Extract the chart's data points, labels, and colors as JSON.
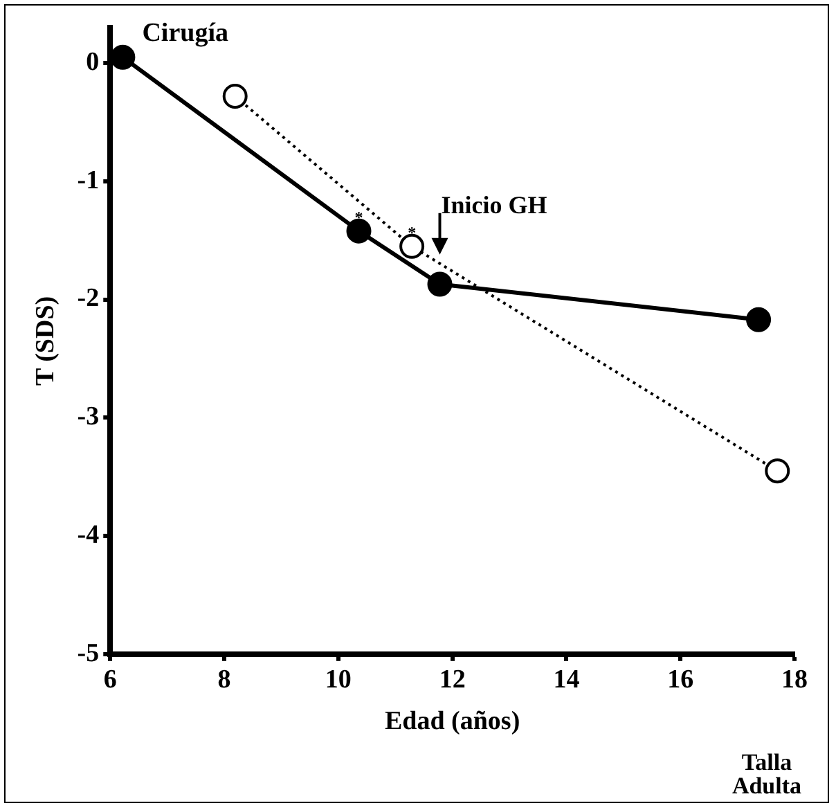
{
  "chart_data": {
    "type": "line",
    "xlabel": "Edad (años)",
    "ylabel": "T (SDS)",
    "xlim": [
      6,
      18
    ],
    "xticks": [
      6,
      8,
      10,
      12,
      14,
      16,
      18
    ],
    "ylim": [
      -5,
      0.3
    ],
    "yticks": [
      0,
      -1,
      -2,
      -3,
      -4,
      -5
    ],
    "grid": false,
    "legend": false,
    "marker": "circle",
    "series": [
      {
        "color": "#000000",
        "x": [
          6.22,
          10.36,
          11.78,
          17.37
        ],
        "values": [
          0.05,
          -1.42,
          -1.87,
          -2.17
        ],
        "line_style": "solid"
      },
      {
        "color": "#000000",
        "x": [
          8.19,
          11.29,
          17.7
        ],
        "values": [
          -0.28,
          -1.55,
          -3.45
        ],
        "line_style": "dotted"
      }
    ],
    "annotations": [
      {
        "text": "Cirugía",
        "x": 6.22,
        "y": 0.05
      },
      {
        "text": "Inicio GH",
        "x": 11.78,
        "y": -1.62
      },
      {
        "text": "*",
        "x": 10.36,
        "y": -1.42
      },
      {
        "text": "*",
        "x": 11.29,
        "y": -1.55
      },
      "Talla Adulta"
    ]
  }
}
